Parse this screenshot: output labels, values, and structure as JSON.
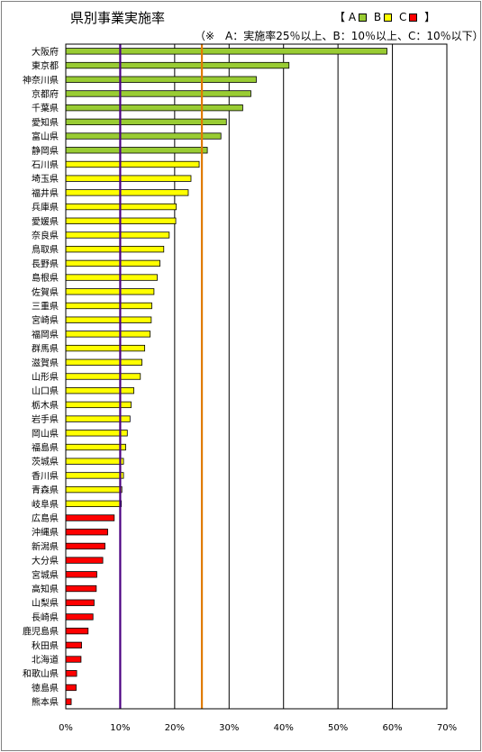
{
  "chart_data": {
    "type": "bar",
    "orientation": "horizontal",
    "title": "県別事業実施率",
    "legend": {
      "open": "【",
      "close": "】",
      "items": [
        {
          "label": "A",
          "color": "#99cc33"
        },
        {
          "label": "B",
          "color": "#ffff00"
        },
        {
          "label": "C",
          "color": "#ff0000"
        }
      ]
    },
    "note": "（※　A：実施率25％以上、B：10％以上、C：10％以下）",
    "xlim": [
      0,
      70
    ],
    "xticks": [
      "0%",
      "10%",
      "20%",
      "30%",
      "40%",
      "50%",
      "60%",
      "70%"
    ],
    "reference_lines": [
      {
        "value": 10,
        "color": "#4b0082"
      },
      {
        "value": 25,
        "color": "#e07b00"
      }
    ],
    "categories": [
      "大阪府",
      "東京都",
      "神奈川県",
      "京都府",
      "千葉県",
      "愛知県",
      "富山県",
      "静岡県",
      "石川県",
      "埼玉県",
      "福井県",
      "兵庫県",
      "愛媛県",
      "奈良県",
      "鳥取県",
      "長野県",
      "島根県",
      "佐賀県",
      "三重県",
      "宮崎県",
      "福岡県",
      "群馬県",
      "滋賀県",
      "山形県",
      "山口県",
      "栃木県",
      "岩手県",
      "岡山県",
      "福島県",
      "茨城県",
      "香川県",
      "青森県",
      "岐阜県",
      "広島県",
      "沖縄県",
      "新潟県",
      "大分県",
      "宮城県",
      "高知県",
      "山梨県",
      "長崎県",
      "鹿児島県",
      "秋田県",
      "北海道",
      "和歌山県",
      "徳島県",
      "熊本県"
    ],
    "values": [
      59,
      41,
      35,
      34,
      32.5,
      29.5,
      28.5,
      26,
      24.5,
      23,
      22.5,
      20.3,
      20.2,
      19,
      18,
      17.3,
      16.8,
      16.2,
      15.8,
      15.7,
      15.5,
      14.5,
      14,
      13.7,
      12.5,
      12,
      11.8,
      11.3,
      11,
      10.6,
      10.6,
      10.3,
      10.2,
      8.9,
      7.7,
      7.2,
      6.8,
      5.7,
      5.6,
      5.2,
      5,
      4.1,
      2.9,
      2.8,
      2,
      1.9,
      1
    ],
    "grades": [
      "A",
      "A",
      "A",
      "A",
      "A",
      "A",
      "A",
      "A",
      "B",
      "B",
      "B",
      "B",
      "B",
      "B",
      "B",
      "B",
      "B",
      "B",
      "B",
      "B",
      "B",
      "B",
      "B",
      "B",
      "B",
      "B",
      "B",
      "B",
      "B",
      "B",
      "B",
      "B",
      "B",
      "C",
      "C",
      "C",
      "C",
      "C",
      "C",
      "C",
      "C",
      "C",
      "C",
      "C",
      "C",
      "C",
      "C"
    ],
    "grid": true
  }
}
